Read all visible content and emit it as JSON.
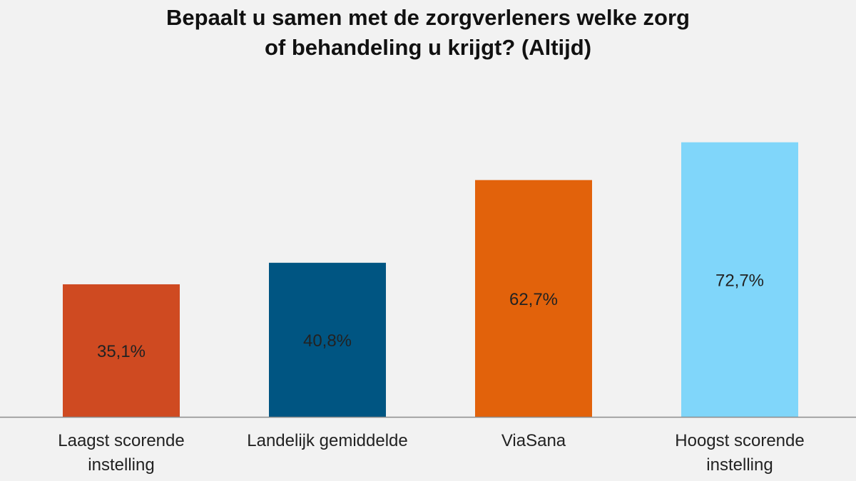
{
  "chart_data": {
    "type": "bar",
    "title_lines": [
      "Bepaalt u samen met de zorgverleners welke zorg",
      "of behandeling u krijgt? (Altijd)"
    ],
    "categories": [
      [
        "Laagst scorende",
        "instelling"
      ],
      [
        "Landelijk gemiddelde"
      ],
      [
        "ViaSana"
      ],
      [
        "Hoogst scorende",
        "instelling"
      ]
    ],
    "values": [
      35.1,
      40.8,
      62.7,
      72.7
    ],
    "labels": [
      "35,1%",
      "40,8%",
      "62,7%",
      "72,7%"
    ],
    "colors": [
      "#cf4a21",
      "#005582",
      "#e2620b",
      "#80d6fa"
    ],
    "xlabel": "",
    "ylabel": "",
    "ylim": [
      0,
      80
    ],
    "grid": false,
    "legend": "none"
  }
}
